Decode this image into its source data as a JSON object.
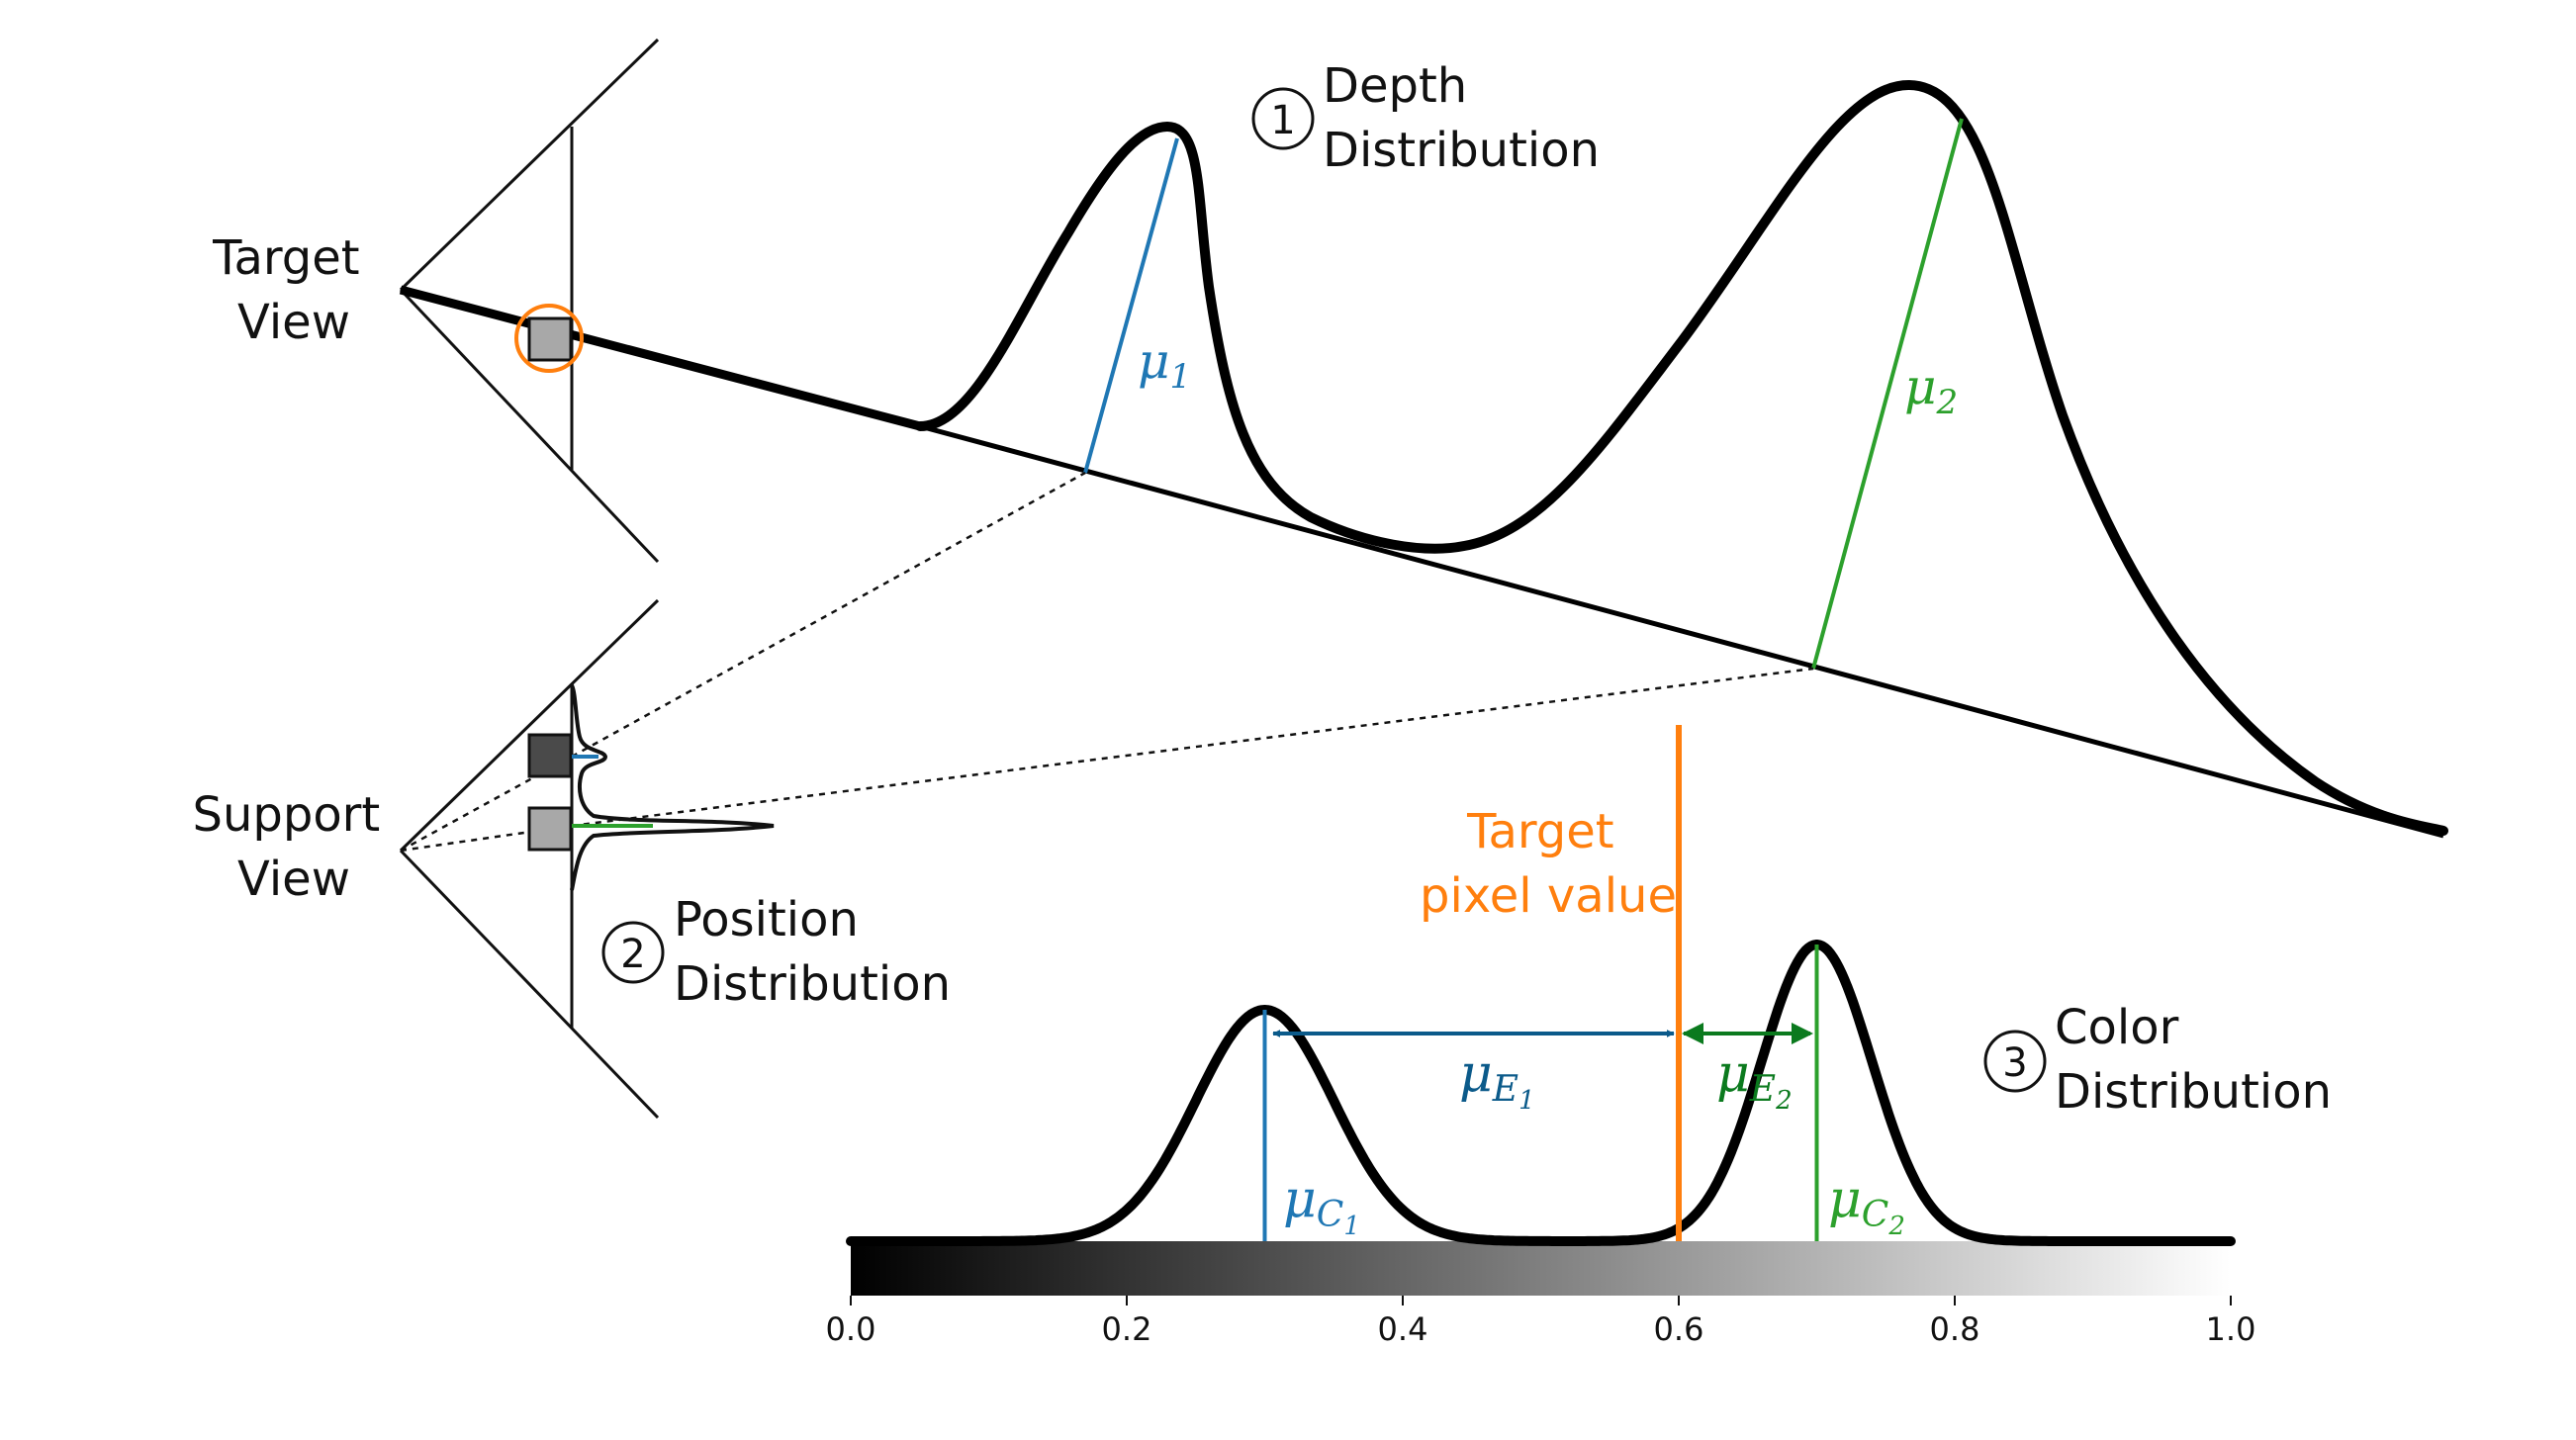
{
  "labels": {
    "target_view": [
      "Target",
      "View"
    ],
    "support_view": [
      "Support",
      "View"
    ],
    "depth_distribution": {
      "number": "1",
      "lines": [
        "Depth",
        "Distribution"
      ]
    },
    "position_distribution": {
      "number": "2",
      "lines": [
        "Position",
        "Distribution"
      ]
    },
    "color_distribution": {
      "number": "3",
      "lines": [
        "Color",
        "Distribution"
      ]
    },
    "target_pixel_value": [
      "Target",
      "pixel value"
    ]
  },
  "symbols": {
    "mu_1": {
      "base": "μ",
      "sub": "1"
    },
    "mu_2": {
      "base": "μ",
      "sub": "2"
    },
    "mu_e1": {
      "base": "μ",
      "sub": "E",
      "subsub": "1"
    },
    "mu_e2": {
      "base": "μ",
      "sub": "E",
      "subsub": "2"
    },
    "mu_c1": {
      "base": "μ",
      "sub": "C",
      "subsub": "1"
    },
    "mu_c2": {
      "base": "μ",
      "sub": "C",
      "subsub": "2"
    }
  },
  "colors": {
    "blue": "#1f77b4",
    "green": "#2ca02c",
    "orange": "#ff7f0e",
    "dark_blue": "#0b5a8a",
    "dark_green": "#0b7a1e",
    "swatch_light": "#a8a8a8",
    "swatch_dark": "#4a4a4a"
  },
  "chart_data": {
    "type": "line",
    "title": "",
    "xlabel": "",
    "ylabel": "",
    "xlim": [
      0.0,
      1.0
    ],
    "x_ticks": [
      "0.0",
      "0.2",
      "0.4",
      "0.6",
      "0.8",
      "1.0"
    ],
    "colorbar": {
      "from": "#000000",
      "to": "#ffffff"
    },
    "color_peaks": [
      0.3,
      0.7
    ],
    "target_pixel_value": 0.6
  }
}
